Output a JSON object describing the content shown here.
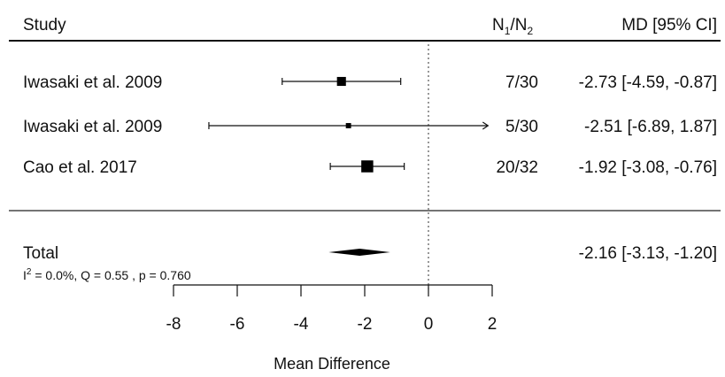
{
  "chart_data": {
    "type": "forest",
    "headers": {
      "study": "Study",
      "n_main": "N",
      "n_sub1": "1",
      "n_slash": "/",
      "n_sub2": "2",
      "md": "MD [95% CI]"
    },
    "studies": [
      {
        "label": "Iwasaki et al. 2009",
        "n": "7/30",
        "md_text": "-2.73 [-4.59, -0.87]",
        "mean": -2.73,
        "lo": -4.59,
        "hi": -0.87,
        "weight": 0.3
      },
      {
        "label": "Iwasaki et al. 2009",
        "n": "5/30",
        "md_text": "-2.51 [-6.89,  1.87]",
        "mean": -2.51,
        "lo": -6.89,
        "hi": 1.87,
        "weight": 0.05,
        "arrow_right": true
      },
      {
        "label": "Cao et al. 2017",
        "n": "20/32",
        "md_text": "-1.92 [-3.08, -0.76]",
        "mean": -1.92,
        "lo": -3.08,
        "hi": -0.76,
        "weight": 0.65
      }
    ],
    "total": {
      "label": "Total",
      "md_text": "-2.16 [-3.13, -1.20]",
      "mean": -2.16,
      "lo": -3.13,
      "hi": -1.2
    },
    "heterogeneity": {
      "i_prefix": "I",
      "i_sup": "2",
      "rest": " = 0.0%, Q = 0.55 ,  p = 0.760"
    },
    "x_axis": {
      "label": "Mean Difference",
      "ticks": [
        -8,
        -6,
        -4,
        -2,
        0,
        2
      ],
      "xlim": [
        -8,
        2
      ],
      "reference_line": 0
    }
  }
}
